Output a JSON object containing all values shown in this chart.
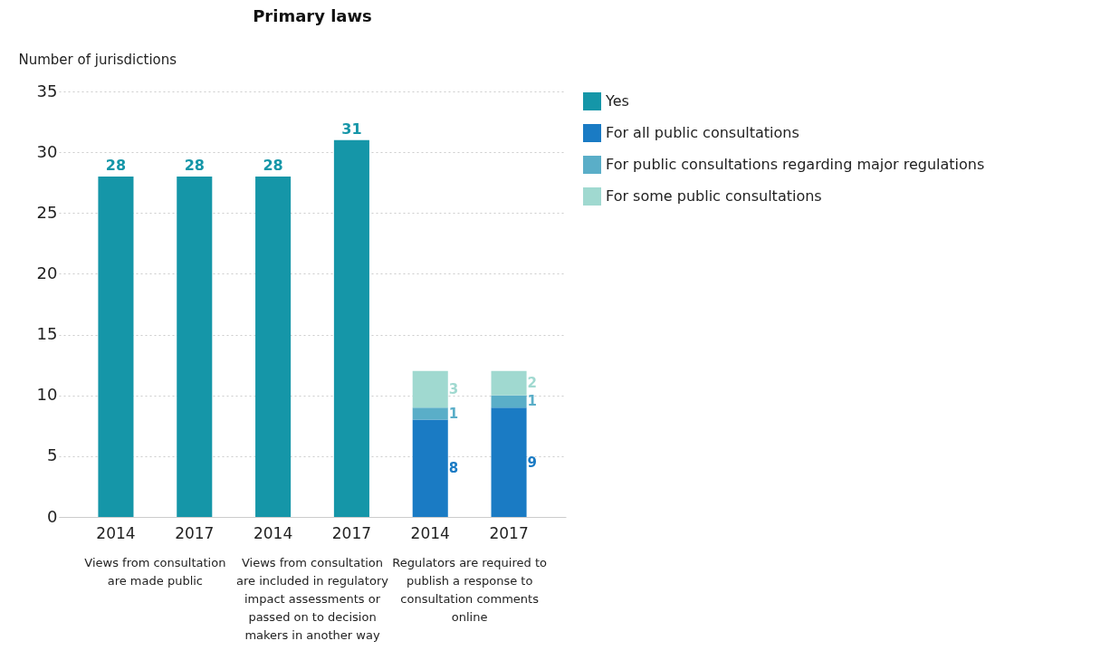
{
  "chart_data": {
    "type": "bar",
    "title": "Primary laws",
    "ylabel": "Number of jurisdictions",
    "categories": [
      "2014",
      "2017",
      "2014",
      "2017",
      "2014",
      "2017"
    ],
    "series": [
      {
        "name": "Yes",
        "color": "#1596a8",
        "values": [
          28,
          28,
          28,
          31,
          null,
          null
        ]
      },
      {
        "name": "For all public consultations",
        "color": "#1a7bc4",
        "values": [
          null,
          null,
          null,
          null,
          8,
          9
        ]
      },
      {
        "name": "For public consultations regarding major regulations",
        "color": "#5aaec8",
        "values": [
          null,
          null,
          null,
          null,
          1,
          1
        ]
      },
      {
        "name": "For some public consultations",
        "color": "#a0d9d0",
        "values": [
          null,
          null,
          null,
          null,
          3,
          2
        ]
      }
    ],
    "stacked": true,
    "data_labels": true,
    "ylim": [
      0,
      35
    ],
    "yticks": [
      0,
      5,
      10,
      15,
      20,
      25,
      30,
      35
    ],
    "grid": "y",
    "legend": "right",
    "annotations": [
      "Views from consultation are made public",
      "Views from consultation are included in regulatory impact assessments or passed on to decision makers in another way",
      "Regulators are required to publish a response to consultation comments online"
    ]
  }
}
